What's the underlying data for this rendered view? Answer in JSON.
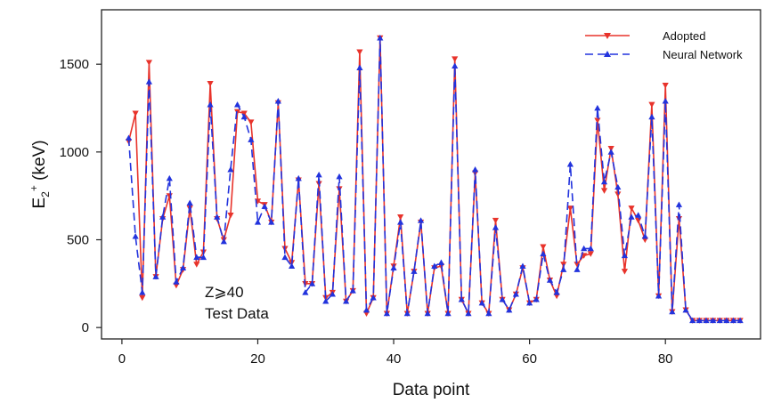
{
  "chart_data": {
    "type": "line",
    "title": "",
    "xlabel": "Data point",
    "ylabel_main": "E",
    "ylabel_sub": "2",
    "ylabel_sup": "+",
    "ylabel_rest": " (keV)",
    "xlim": [
      -3,
      94
    ],
    "ylim": [
      -65,
      1810
    ],
    "xticks": [
      0,
      20,
      40,
      60,
      80
    ],
    "yticks": [
      0,
      500,
      1000,
      1500
    ],
    "grid": false,
    "legend_position": "top-right",
    "annotation": [
      "Z⩾40",
      "Test Data"
    ],
    "x": [
      1,
      2,
      3,
      4,
      5,
      6,
      7,
      8,
      9,
      10,
      11,
      12,
      13,
      14,
      15,
      16,
      17,
      18,
      19,
      20,
      21,
      22,
      23,
      24,
      25,
      26,
      27,
      28,
      29,
      30,
      31,
      32,
      33,
      34,
      35,
      36,
      37,
      38,
      39,
      40,
      41,
      42,
      43,
      44,
      45,
      46,
      47,
      48,
      49,
      50,
      51,
      52,
      53,
      54,
      55,
      56,
      57,
      58,
      59,
      60,
      61,
      62,
      63,
      64,
      65,
      66,
      67,
      68,
      69,
      70,
      71,
      72,
      73,
      74,
      75,
      76,
      77,
      78,
      79,
      80,
      81,
      82,
      83,
      84,
      85,
      86,
      87,
      88,
      89,
      90,
      91
    ],
    "series": [
      {
        "name": "Adopted",
        "color": "#e8332b",
        "dash": "solid",
        "marker": "triangle-down",
        "values": [
          1060,
          1220,
          170,
          1510,
          290,
          620,
          750,
          240,
          330,
          680,
          360,
          430,
          1390,
          620,
          500,
          640,
          1230,
          1220,
          1170,
          720,
          700,
          600,
          1280,
          450,
          370,
          840,
          250,
          250,
          820,
          170,
          200,
          790,
          150,
          210,
          1570,
          80,
          170,
          1650,
          80,
          350,
          630,
          80,
          320,
          600,
          80,
          340,
          350,
          80,
          1530,
          160,
          80,
          880,
          140,
          80,
          610,
          160,
          100,
          190,
          340,
          140,
          160,
          460,
          270,
          180,
          360,
          680,
          360,
          410,
          420,
          1180,
          780,
          1020,
          760,
          320,
          680,
          610,
          500,
          1270,
          180,
          1380,
          90,
          620,
          100,
          40,
          40,
          40,
          40,
          40,
          40,
          40,
          40
        ]
      },
      {
        "name": "Neural Network",
        "color": "#2233dd",
        "dash": "dashed",
        "marker": "triangle-up",
        "values": [
          1080,
          520,
          200,
          1400,
          290,
          630,
          850,
          260,
          340,
          710,
          400,
          400,
          1270,
          630,
          490,
          900,
          1270,
          1200,
          1070,
          600,
          690,
          600,
          1290,
          400,
          350,
          850,
          200,
          250,
          870,
          150,
          190,
          860,
          150,
          210,
          1480,
          100,
          170,
          1650,
          80,
          340,
          600,
          80,
          320,
          610,
          80,
          350,
          370,
          80,
          1490,
          160,
          80,
          900,
          140,
          80,
          570,
          160,
          100,
          190,
          350,
          140,
          160,
          420,
          270,
          200,
          330,
          930,
          330,
          450,
          450,
          1250,
          830,
          1000,
          800,
          410,
          630,
          640,
          520,
          1200,
          180,
          1290,
          90,
          700,
          100,
          40,
          40,
          40,
          40,
          40,
          40,
          40,
          40
        ]
      }
    ]
  }
}
